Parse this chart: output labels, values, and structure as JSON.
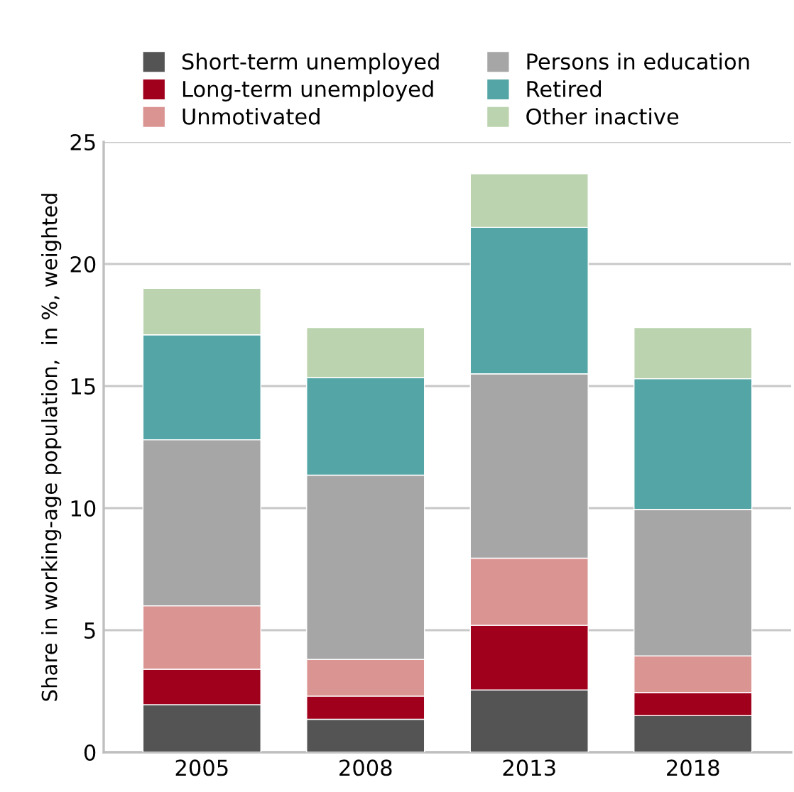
{
  "chart_data": {
    "type": "bar",
    "stacked": true,
    "ylabel": "Share in working-age population,  in %, weighted",
    "categories": [
      "2005",
      "2008",
      "2013",
      "2018"
    ],
    "series": [
      {
        "name": "Short-term unemployed",
        "color": "#545454",
        "values": [
          1.95,
          1.35,
          2.55,
          1.5
        ]
      },
      {
        "name": "Long-term unemployed",
        "color": "#a0001c",
        "values": [
          1.45,
          0.95,
          2.65,
          0.95
        ]
      },
      {
        "name": "Unmotivated",
        "color": "#da9593",
        "values": [
          2.6,
          1.5,
          2.75,
          1.5
        ]
      },
      {
        "name": "Persons in education",
        "color": "#a6a6a6",
        "values": [
          6.8,
          7.55,
          7.55,
          6.0
        ]
      },
      {
        "name": "Retired",
        "color": "#54a5a5",
        "values": [
          4.3,
          4.0,
          6.0,
          5.35
        ]
      },
      {
        "name": "Other inactive",
        "color": "#bbd3ae",
        "values": [
          1.9,
          2.05,
          2.2,
          2.1
        ]
      }
    ],
    "ylim": [
      0,
      25
    ],
    "yticks": [
      0,
      5,
      10,
      15,
      20,
      25
    ],
    "grid": "y",
    "legend": "top"
  }
}
